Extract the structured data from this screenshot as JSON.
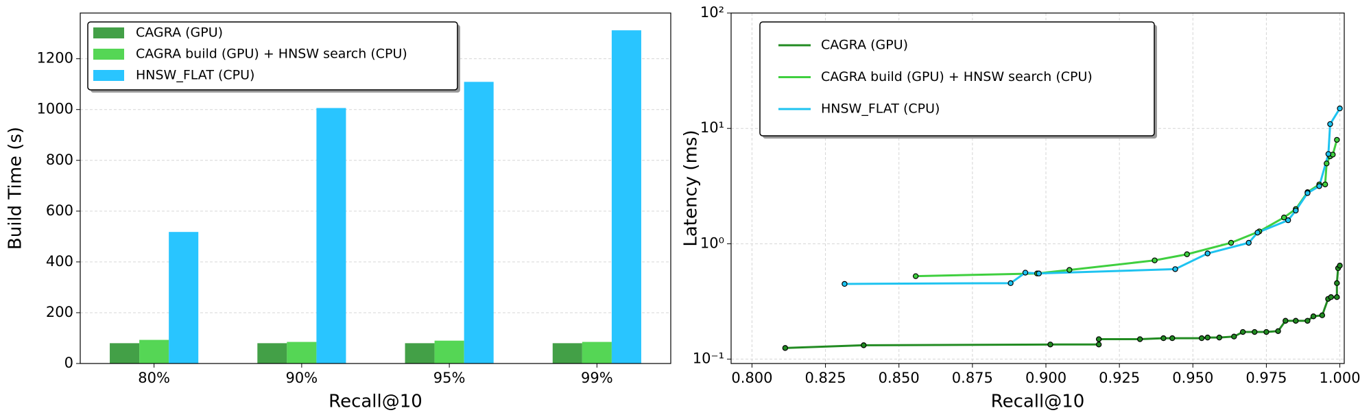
{
  "chart_data": [
    {
      "type": "bar",
      "xlabel": "Recall@10",
      "ylabel": "Build Time (s)",
      "categories": [
        "80%",
        "90%",
        "95%",
        "99%"
      ],
      "series": [
        {
          "name": "CAGRA (GPU)",
          "color": "#43a047",
          "values": [
            80,
            80,
            80,
            80
          ]
        },
        {
          "name": "CAGRA build (GPU) + HNSW search (CPU)",
          "color": "#55d655",
          "values": [
            93,
            85,
            90,
            85
          ]
        },
        {
          "name": "HNSW_FLAT (CPU)",
          "color": "#29c5ff",
          "values": [
            518,
            1006,
            1109,
            1312
          ]
        }
      ],
      "ylim": [
        0,
        1380
      ],
      "yticks": [
        0,
        200,
        400,
        600,
        800,
        1000,
        1200
      ],
      "grid": true,
      "legend": "upper left"
    },
    {
      "type": "line",
      "xlabel": "Recall@10",
      "ylabel": "Latency (ms)",
      "yscale": "log",
      "series": [
        {
          "name": "CAGRA (GPU)",
          "color": "#228b22",
          "x": [
            0.8113,
            0.838,
            0.9015,
            0.918,
            0.918,
            0.932,
            0.94,
            0.943,
            0.953,
            0.955,
            0.959,
            0.964,
            0.967,
            0.971,
            0.975,
            0.979,
            0.9815,
            0.985,
            0.989,
            0.991,
            0.994,
            0.996,
            0.997,
            0.999,
            0.999,
            0.9994,
            1.0
          ],
          "values": [
            0.125,
            0.132,
            0.134,
            0.134,
            0.149,
            0.149,
            0.152,
            0.152,
            0.152,
            0.154,
            0.154,
            0.157,
            0.172,
            0.172,
            0.172,
            0.175,
            0.215,
            0.215,
            0.215,
            0.235,
            0.24,
            0.333,
            0.345,
            0.345,
            0.456,
            0.614,
            0.647
          ]
        },
        {
          "name": "CAGRA build (GPU) + HNSW search (CPU)",
          "color": "#3fcf3f",
          "x": [
            0.8557,
            0.897,
            0.908,
            0.937,
            0.948,
            0.963,
            0.9726,
            0.981,
            0.985,
            0.989,
            0.993,
            0.995,
            0.9955,
            0.9967,
            0.9976,
            0.999
          ],
          "values": [
            0.524,
            0.553,
            0.593,
            0.718,
            0.811,
            1.02,
            1.28,
            1.69,
            2.0,
            2.8,
            3.27,
            3.27,
            4.97,
            5.73,
            5.93,
            7.96
          ]
        },
        {
          "name": "HNSW_FLAT (CPU)",
          "color": "#1ec3f0",
          "x": [
            0.8315,
            0.888,
            0.893,
            0.8976,
            0.944,
            0.955,
            0.969,
            0.972,
            0.9824,
            0.985,
            0.989,
            0.993,
            0.9961,
            0.9967,
            1.0
          ],
          "values": [
            0.449,
            0.456,
            0.562,
            0.553,
            0.603,
            0.825,
            1.02,
            1.25,
            1.6,
            1.94,
            2.75,
            3.16,
            6.0,
            10.9,
            14.9
          ]
        }
      ],
      "xlim": [
        0.7929,
        1.0015
      ],
      "xticks": [
        {
          "value": 0.8,
          "label": "0.800"
        },
        {
          "value": 0.825,
          "label": "0.825"
        },
        {
          "value": 0.85,
          "label": "0.850"
        },
        {
          "value": 0.875,
          "label": "0.875"
        },
        {
          "value": 0.9,
          "label": "0.900"
        },
        {
          "value": 0.925,
          "label": "0.925"
        },
        {
          "value": 0.95,
          "label": "0.950"
        },
        {
          "value": 0.975,
          "label": "0.975"
        },
        {
          "value": 1.0,
          "label": "1.000"
        }
      ],
      "ylim": [
        0.0917,
        100
      ],
      "yticks": [
        {
          "value": 0.1,
          "label": "10⁻¹"
        },
        {
          "value": 1,
          "label": "10⁰"
        },
        {
          "value": 10,
          "label": "10¹"
        },
        {
          "value": 100,
          "label": "10²"
        }
      ],
      "grid": true,
      "legend": "upper left"
    }
  ]
}
